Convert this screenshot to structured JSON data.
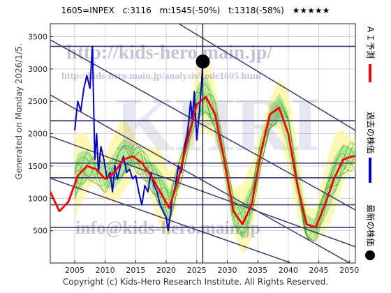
{
  "header": {
    "ticker": "1605=INPEX",
    "current": "c:3116",
    "median": "m:1545(-50%)",
    "target": "t:1318(-58%)",
    "stars": "★★★★★"
  },
  "footer": "Copyright (c) Kids-Hero Research Institute. All Rights Reserved.",
  "side_label": "Generated on Monday 2026/1/5.",
  "watermarks": {
    "url": "http://kids-hero.main.jp/",
    "path": "http://kids-hero.main.jp/analysis/code1605.html",
    "email": "info@kids-hero.main.jp"
  },
  "colors": {
    "ai_forecast": "#ff0000",
    "past_price": "#0000dd",
    "latest_price": "#000000",
    "trend_lines": "#3a3a6e",
    "band_light": "#fff59a",
    "band_green": "#9be08a"
  },
  "chart_data": {
    "type": "line",
    "xlim": [
      2001,
      2051
    ],
    "ylim": [
      0,
      3700
    ],
    "x_ticks": [
      2005,
      2010,
      2015,
      2020,
      2025,
      2030,
      2035,
      2040,
      2045,
      2050
    ],
    "y_ticks": [
      500,
      1000,
      1500,
      2000,
      2500,
      3000,
      3500
    ],
    "grid": true,
    "legend_position": "right",
    "legend": [
      {
        "label": "ＡＩ予測",
        "color": "#ff0000"
      },
      {
        "label": "過去の株価",
        "color": "#0000dd"
      },
      {
        "label": "最新の株価",
        "color": "#000000"
      }
    ],
    "latest_point": {
      "x": 2026.0,
      "y": 3116
    },
    "current_year_marker": 2026.0,
    "horizontal_levels": [
      3350,
      2200,
      1545,
      1318,
      900,
      550
    ],
    "trend_lines": [
      {
        "x": [
          2001,
          2051
        ],
        "y": [
          4900,
          2050
        ]
      },
      {
        "x": [
          2001,
          2051
        ],
        "y": [
          3450,
          820
        ]
      },
      {
        "x": [
          2001,
          2051
        ],
        "y": [
          2600,
          -50
        ]
      },
      {
        "x": [
          2001,
          2051
        ],
        "y": [
          1960,
          250
        ]
      },
      {
        "x": [
          2001,
          2051
        ],
        "y": [
          1310,
          -350
        ]
      }
    ],
    "series": [
      {
        "name": "過去の株価",
        "x": [
          2005.0,
          2005.5,
          2006.0,
          2006.5,
          2007.0,
          2007.5,
          2007.9,
          2008.3,
          2008.6,
          2008.9,
          2009.3,
          2009.8,
          2010.3,
          2010.8,
          2011.2,
          2011.6,
          2012.0,
          2012.5,
          2013.0,
          2013.5,
          2014.0,
          2014.5,
          2015.0,
          2015.5,
          2016.0,
          2016.5,
          2017.0,
          2017.5,
          2018.0,
          2018.5,
          2019.0,
          2019.5,
          2020.0,
          2020.3,
          2020.7,
          2021.0,
          2021.5,
          2022.0,
          2022.5,
          2023.0,
          2023.5,
          2024.0,
          2024.3,
          2024.6,
          2025.0,
          2025.4,
          2025.8,
          2026.0
        ],
        "y": [
          2050,
          2500,
          2350,
          2700,
          2900,
          2700,
          3350,
          1600,
          2000,
          1400,
          1800,
          1600,
          1300,
          1400,
          1100,
          1500,
          1300,
          1500,
          1650,
          1400,
          1450,
          1300,
          1350,
          1100,
          900,
          1200,
          1100,
          1400,
          1200,
          1100,
          900,
          800,
          700,
          500,
          750,
          1000,
          1200,
          1500,
          1400,
          1800,
          2000,
          2500,
          2200,
          2650,
          1900,
          2300,
          2800,
          3116
        ]
      },
      {
        "name": "ＡＩ予測",
        "x": [
          2001.0,
          2002.5,
          2004.0,
          2005.5,
          2007.0,
          2008.5,
          2010.0,
          2011.5,
          2013.0,
          2014.5,
          2016.0,
          2017.5,
          2019.0,
          2020.5,
          2022.0,
          2023.5,
          2025.0,
          2026.5,
          2028.0,
          2029.5,
          2031.0,
          2032.5,
          2034.0,
          2035.5,
          2037.0,
          2038.5,
          2040.0,
          2041.5,
          2043.0,
          2044.5,
          2046.0,
          2047.5,
          2049.0,
          2050.5,
          2051.0
        ],
        "y": [
          1100,
          800,
          950,
          1350,
          1500,
          1450,
          1300,
          1400,
          1600,
          1650,
          1550,
          1350,
          1100,
          850,
          1300,
          1900,
          2450,
          2570,
          2300,
          1600,
          800,
          600,
          900,
          1700,
          2300,
          2400,
          2000,
          1200,
          600,
          550,
          900,
          1300,
          1600,
          1650,
          1650
        ]
      }
    ]
  }
}
